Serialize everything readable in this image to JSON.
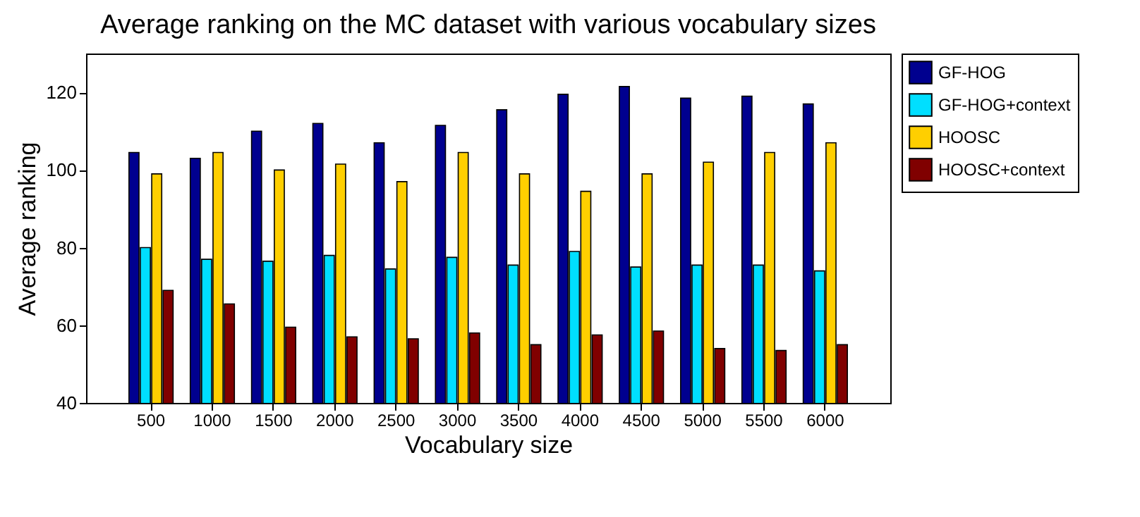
{
  "chart_data": {
    "type": "bar",
    "title": "Average ranking on the MC dataset with various vocabulary sizes",
    "xlabel": "Vocabulary size",
    "ylabel": "Average ranking",
    "categories": [
      "500",
      "1000",
      "1500",
      "2000",
      "2500",
      "3000",
      "3500",
      "4000",
      "4500",
      "5000",
      "5500",
      "6000"
    ],
    "series": [
      {
        "name": "GF-HOG",
        "color": "#00008f",
        "values": [
          104.5,
          103,
          110,
          112,
          107,
          111.5,
          115.5,
          119.5,
          121.5,
          118.5,
          119,
          117
        ]
      },
      {
        "name": "GF-HOG+context",
        "color": "#00dfff",
        "values": [
          80,
          77,
          76.5,
          78,
          74.5,
          77.5,
          75.5,
          79,
          75,
          75.5,
          75.5,
          74
        ]
      },
      {
        "name": "HOOSC",
        "color": "#ffcf00",
        "values": [
          99,
          104.5,
          100,
          101.5,
          97,
          104.5,
          99,
          94.5,
          99,
          102,
          104.5,
          107
        ]
      },
      {
        "name": "HOOSC+context",
        "color": "#800000",
        "values": [
          69,
          65.5,
          59.5,
          57,
          56.5,
          58,
          55,
          57.5,
          58.5,
          54,
          53.5,
          55
        ]
      }
    ],
    "ylim": [
      40,
      130
    ],
    "yticks": [
      40,
      60,
      80,
      100,
      120
    ],
    "grid": false,
    "legend": "right"
  }
}
